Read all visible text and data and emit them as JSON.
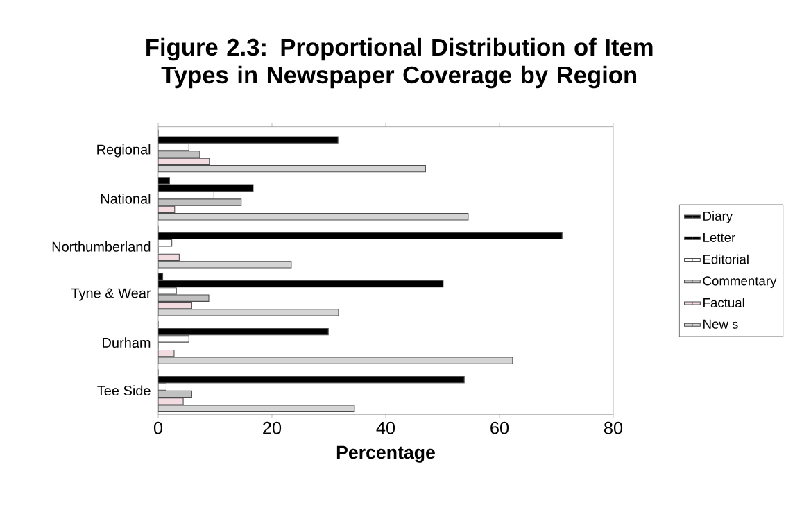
{
  "chart_data": {
    "type": "bar",
    "orientation": "horizontal",
    "title": "Figure 2.3: Proportional Distribution of Item Types in Newspaper Coverage by Region",
    "xlabel": "Percentage",
    "categories": [
      "Regional",
      "National",
      "Northumberland",
      "Tyne & Wear",
      "Durham",
      "Tee Side"
    ],
    "series": [
      {
        "name": "Diary",
        "color": "#000000",
        "values": [
          0,
          2.0,
          0,
          0.8,
          0,
          0
        ]
      },
      {
        "name": "Letter",
        "color": "#000000",
        "values": [
          31.6,
          16.7,
          71.0,
          50.1,
          29.9,
          53.8
        ]
      },
      {
        "name": "Editorial",
        "color": "#ffffff",
        "values": [
          5.4,
          9.8,
          2.4,
          3.2,
          5.4,
          1.4
        ]
      },
      {
        "name": "Commentary",
        "color": "#c0c0c0",
        "values": [
          7.3,
          14.6,
          0,
          8.9,
          0,
          5.9
        ]
      },
      {
        "name": "Factual",
        "color": "#f2dce2",
        "values": [
          9.0,
          2.9,
          3.7,
          5.9,
          2.8,
          4.4
        ]
      },
      {
        "name": "New s",
        "color": "#d4d4d4",
        "values": [
          47.0,
          54.5,
          23.4,
          31.7,
          62.3,
          34.5
        ]
      }
    ],
    "xlim": [
      0,
      80
    ],
    "xticks": [
      0,
      20,
      40,
      60,
      80
    ],
    "grid": false,
    "legend": "right"
  }
}
